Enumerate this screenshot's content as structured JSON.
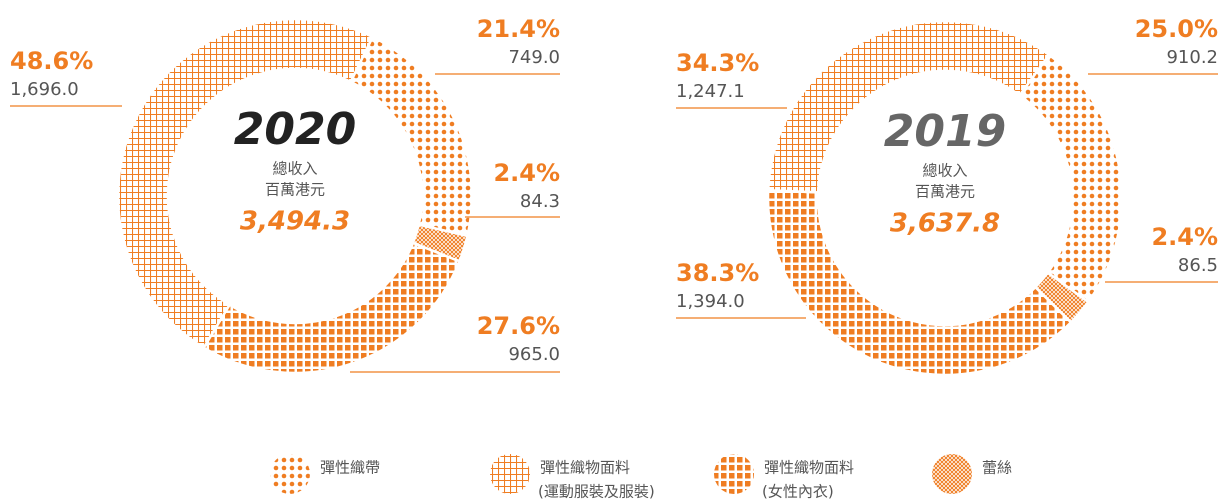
{
  "chart_data": [
    {
      "type": "donut",
      "title": "2020",
      "title_color": "#222222",
      "subtitle": "總收入",
      "unit": "百萬港元",
      "total": 3494.3,
      "total_label": "3,494.3",
      "color": "#ef7d22",
      "values": [
        21.4,
        48.6,
        27.6,
        2.4
      ],
      "value_labels": [
        "21.4%",
        "48.6%",
        "27.6%",
        "2.4%"
      ],
      "amounts": [
        749.0,
        1696.0,
        965.0,
        84.3
      ],
      "amount_labels": [
        "749.0",
        "1,696.0",
        "965.0",
        "84.3"
      ]
    },
    {
      "type": "donut",
      "title": "2019",
      "title_color": "#666666",
      "subtitle": "總收入",
      "unit": "百萬港元",
      "total": 3637.8,
      "total_label": "3,637.8",
      "color": "#ef7d22",
      "values": [
        25.0,
        34.3,
        38.3,
        2.4
      ],
      "value_labels": [
        "25.0%",
        "34.3%",
        "38.3%",
        "2.4%"
      ],
      "amounts": [
        910.2,
        1247.1,
        1394.0,
        86.5
      ],
      "amount_labels": [
        "910.2",
        "1,247.1",
        "1,394.0",
        "86.5"
      ]
    }
  ],
  "legend": {
    "items": [
      {
        "name": "彈性織帶",
        "pattern": "dots"
      },
      {
        "name": "彈性織物面料",
        "note": "(運動服裝及服裝)",
        "pattern": "grid"
      },
      {
        "name": "彈性織物面料",
        "note": "(女性內衣)",
        "pattern": "squares"
      },
      {
        "name": "蕾絲",
        "pattern": "lace"
      }
    ]
  }
}
